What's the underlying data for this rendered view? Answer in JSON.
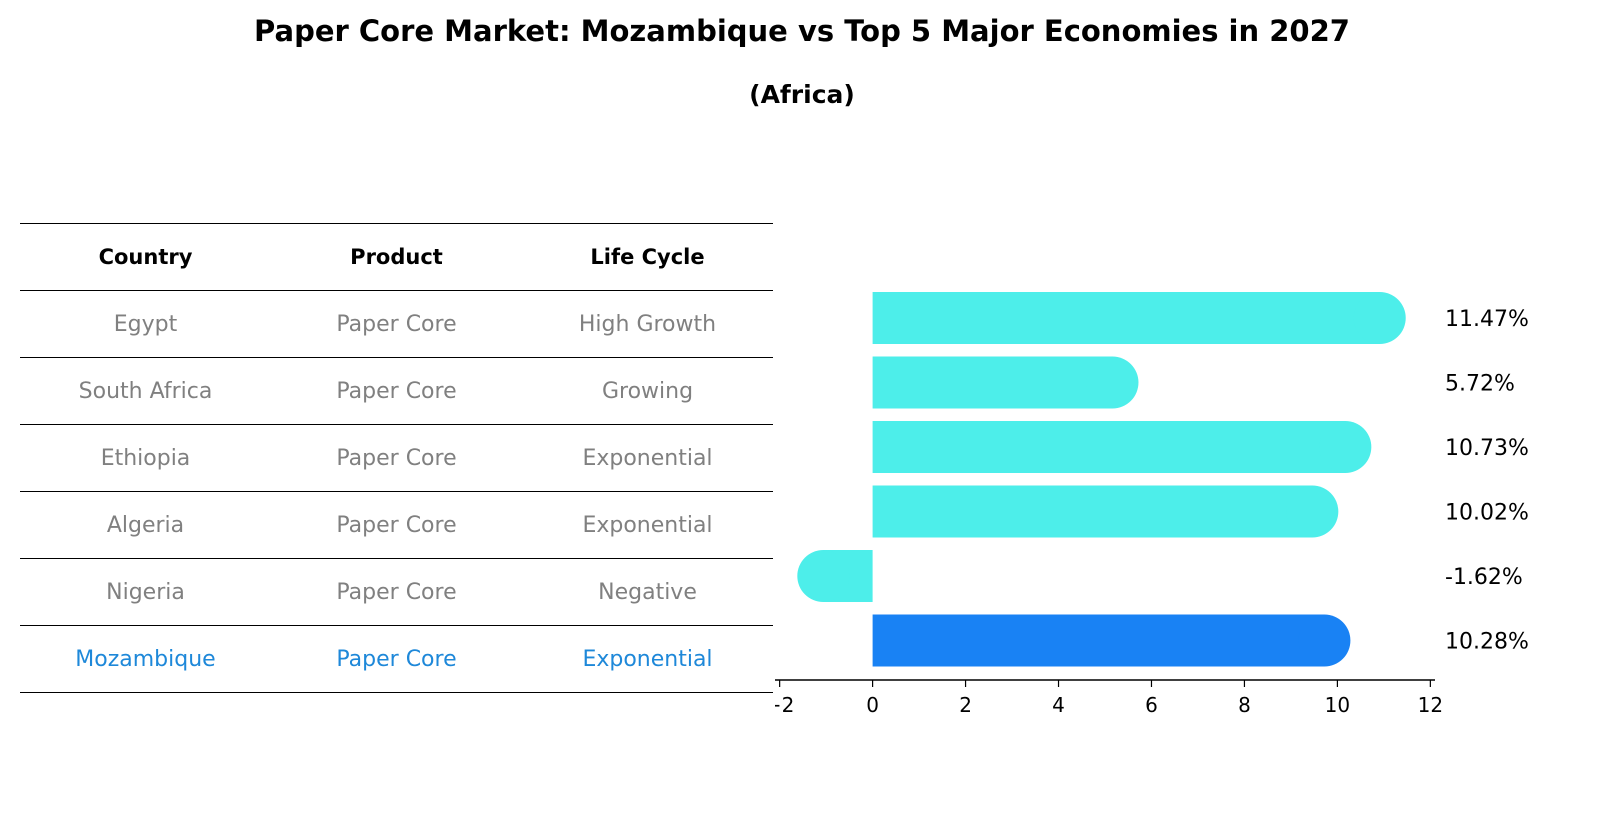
{
  "title": "Paper Core Market: Mozambique vs Top 5 Major Economies in 2027",
  "subtitle": "(Africa)",
  "table": {
    "headers": [
      "Country",
      "Product",
      "Life Cycle"
    ],
    "rows": [
      [
        "Egypt",
        "Paper Core",
        "High Growth"
      ],
      [
        "South Africa",
        "Paper Core",
        "Growing"
      ],
      [
        "Ethiopia",
        "Paper Core",
        "Exponential"
      ],
      [
        "Algeria",
        "Paper Core",
        "Exponential"
      ],
      [
        "Nigeria",
        "Paper Core",
        "Negative"
      ],
      [
        "Mozambique",
        "Paper Core",
        "Exponential"
      ]
    ]
  },
  "colors": {
    "bar": "#4deeea",
    "highlight": "#1982f4",
    "highlight_text": "#1e88d9",
    "muted_text": "#808080"
  },
  "chart_data": {
    "type": "bar",
    "orientation": "horizontal",
    "categories": [
      "Egypt",
      "South Africa",
      "Ethiopia",
      "Algeria",
      "Nigeria",
      "Mozambique"
    ],
    "values": [
      11.47,
      5.72,
      10.73,
      10.02,
      -1.62,
      10.28
    ],
    "value_labels": [
      "11.47%",
      "5.72%",
      "10.73%",
      "10.02%",
      "-1.62%",
      "10.28%"
    ],
    "highlight_index": 5,
    "xlim": [
      -2.1,
      12.1
    ],
    "xticks": [
      -2,
      0,
      2,
      4,
      6,
      8,
      10,
      12
    ],
    "xtick_labels": [
      "−2",
      "0",
      "2",
      "4",
      "6",
      "8",
      "10",
      "12"
    ],
    "grid": false
  }
}
